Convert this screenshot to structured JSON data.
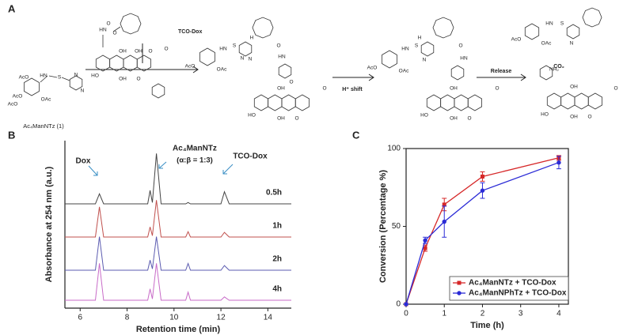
{
  "scheme": {
    "panel": "A",
    "reagent": "TCO-Dox",
    "reactant": "Ac₄ManNTz (1)",
    "step1": "H⁺ shift",
    "step2": "Release",
    "byproduct": "CO₂",
    "atoms": {
      "aco": "AcO",
      "oac": "OAc",
      "hn": "HN",
      "o": "O",
      "s": "S",
      "n": "N",
      "oh": "OH",
      "ho": "HO",
      "h": "H",
      "nh2": "NH₂"
    }
  },
  "chart_data": [
    {
      "panel": "B",
      "type": "chromatogram",
      "xlabel": "Retention time (min)",
      "ylabel": "Absorbance at 254 nm (a.u.)",
      "xlim": [
        5.35,
        15
      ],
      "xticks": [
        6,
        8,
        10,
        12,
        14
      ],
      "x": [
        5.35,
        6.65,
        6.82,
        7.0,
        8.88,
        8.98,
        9.08,
        9.25,
        9.45,
        10.5,
        10.6,
        10.7,
        12.0,
        12.15,
        12.35,
        15
      ],
      "series": [
        {
          "name": "0.5h",
          "color": "#444444",
          "values": [
            0,
            0,
            0.15,
            0,
            0,
            0.2,
            0.02,
            0.75,
            0,
            0,
            0.02,
            0,
            0,
            0.18,
            0,
            0
          ]
        },
        {
          "name": "1h",
          "color": "#c0504d",
          "values": [
            0,
            0,
            0.45,
            0,
            0,
            0.15,
            0.02,
            0.55,
            0,
            0,
            0.08,
            0,
            0,
            0.07,
            0,
            0
          ]
        },
        {
          "name": "2h",
          "color": "#5b5bb0",
          "values": [
            0,
            0,
            0.5,
            0,
            0,
            0.15,
            0.02,
            0.5,
            0,
            0,
            0.1,
            0,
            0,
            0.07,
            0,
            0
          ]
        },
        {
          "name": "4h",
          "color": "#c86bc8",
          "values": [
            0,
            0,
            0.55,
            0,
            0,
            0.17,
            0.02,
            0.55,
            0,
            0,
            0.12,
            0,
            0,
            0.05,
            0,
            0
          ]
        }
      ],
      "annotations": {
        "dox": "Dox",
        "tz": "Ac₄ManNTz",
        "ratio": "(α:β = 1:3)",
        "tcodox": "TCO-Dox"
      }
    },
    {
      "panel": "C",
      "type": "line",
      "xlabel": "Time (h)",
      "ylabel": "Conversion (Percentage %)",
      "x": [
        0,
        0.5,
        1,
        2,
        4
      ],
      "xlim": [
        0,
        4.25
      ],
      "xticks": [
        0,
        1,
        2,
        3,
        4
      ],
      "ylim": [
        0,
        100
      ],
      "yticks": [
        0,
        50,
        100
      ],
      "legend": "lower right",
      "series": [
        {
          "name": "Ac₄ManNTz + TCO-Dox",
          "color": "#d62728",
          "marker": "square",
          "values": [
            0,
            36,
            64,
            82,
            94
          ],
          "errors": [
            0,
            2,
            4,
            3,
            1.5
          ]
        },
        {
          "name": "Ac₄ManNPhTz + TCO-Dox",
          "color": "#2b2bd6",
          "marker": "circle",
          "values": [
            0,
            41,
            53,
            73,
            91
          ],
          "errors": [
            0,
            2,
            10,
            5,
            4
          ]
        }
      ]
    }
  ]
}
